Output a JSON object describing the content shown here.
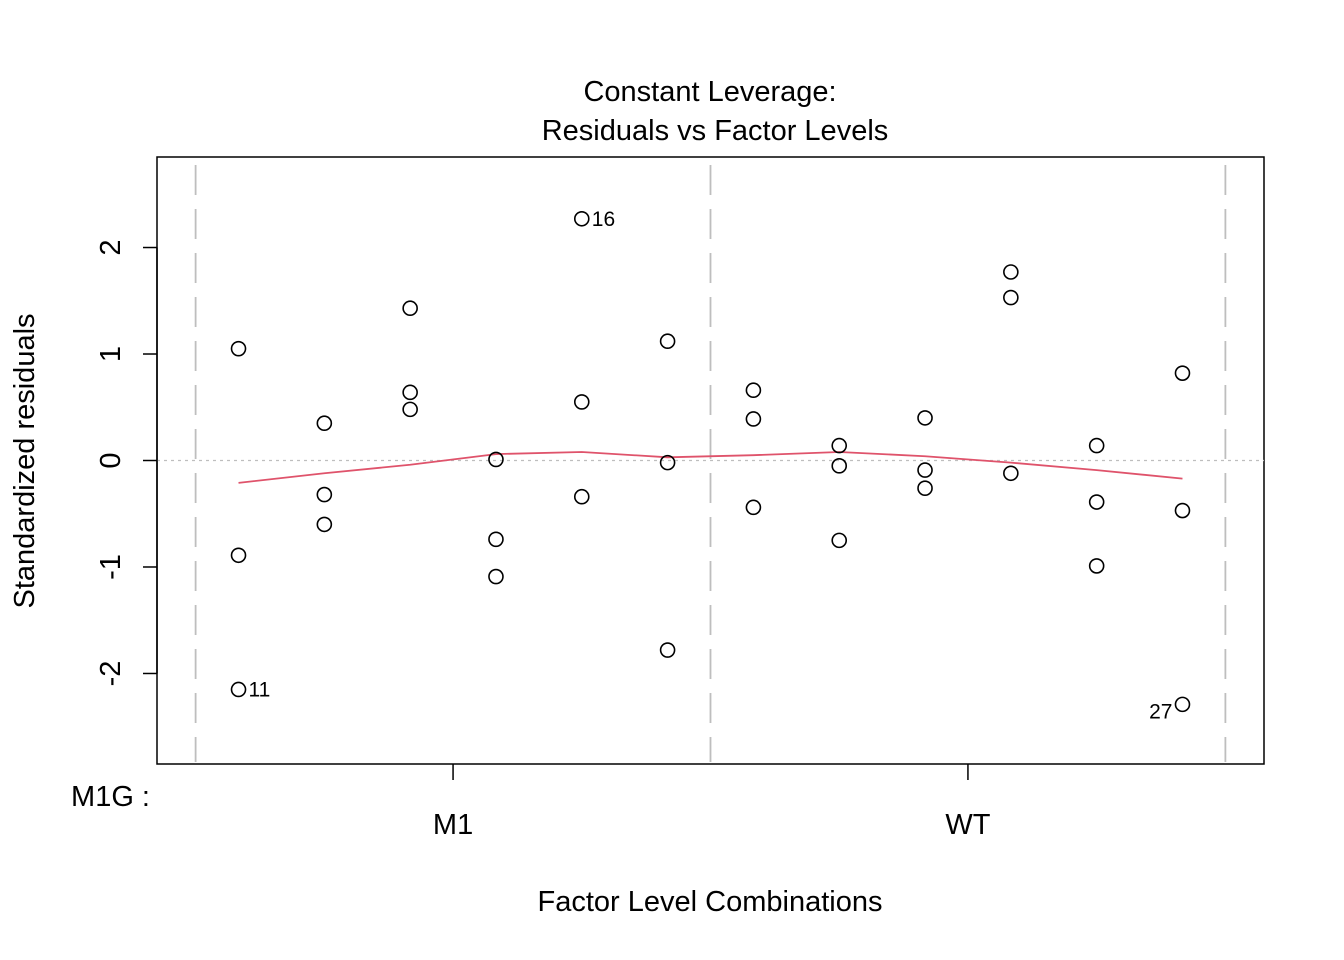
{
  "chart_data": {
    "type": "scatter",
    "title": "Constant Leverage:",
    "subtitle": "Residuals vs Factor Levels",
    "xlabel": "Factor Level Combinations",
    "ylabel": "Standardized residuals",
    "factor_label": "M1G :",
    "factor_levels": [
      "M1",
      "WT"
    ],
    "ylim": [
      -2.85,
      2.85
    ],
    "yticks": [
      -2,
      -1,
      0,
      1,
      2
    ],
    "ytick_labels": [
      "-2",
      "-1",
      "0",
      "1",
      "2"
    ],
    "group_boundaries": [
      0.5,
      6.5,
      12.5
    ],
    "level_centers": [
      3.5,
      9.5
    ],
    "reference_line": 0,
    "colors": {
      "points": "#000000",
      "smooth": "#DF536B",
      "dividers": "#BEBEBE",
      "reference": "#BEBEBE"
    },
    "points": [
      {
        "x": 1,
        "y": 1.05
      },
      {
        "x": 1,
        "y": -0.89
      },
      {
        "x": 1,
        "y": -2.15
      },
      {
        "x": 2,
        "y": 0.35
      },
      {
        "x": 2,
        "y": -0.32
      },
      {
        "x": 2,
        "y": -0.6
      },
      {
        "x": 3,
        "y": 1.43
      },
      {
        "x": 3,
        "y": 0.64
      },
      {
        "x": 3,
        "y": 0.48
      },
      {
        "x": 4,
        "y": 0.01
      },
      {
        "x": 4,
        "y": -0.74
      },
      {
        "x": 4,
        "y": -1.09
      },
      {
        "x": 5,
        "y": 2.27
      },
      {
        "x": 5,
        "y": 0.55
      },
      {
        "x": 5,
        "y": -0.34
      },
      {
        "x": 6,
        "y": 1.12
      },
      {
        "x": 6,
        "y": -0.02
      },
      {
        "x": 6,
        "y": -1.78
      },
      {
        "x": 7,
        "y": 0.66
      },
      {
        "x": 7,
        "y": 0.39
      },
      {
        "x": 7,
        "y": -0.44
      },
      {
        "x": 8,
        "y": 0.14
      },
      {
        "x": 8,
        "y": -0.05
      },
      {
        "x": 8,
        "y": -0.75
      },
      {
        "x": 9,
        "y": 0.4
      },
      {
        "x": 9,
        "y": -0.09
      },
      {
        "x": 9,
        "y": -0.26
      },
      {
        "x": 10,
        "y": 1.77
      },
      {
        "x": 10,
        "y": 1.53
      },
      {
        "x": 10,
        "y": -0.12
      },
      {
        "x": 11,
        "y": 0.14
      },
      {
        "x": 11,
        "y": -0.39
      },
      {
        "x": 11,
        "y": -0.99
      },
      {
        "x": 12,
        "y": 0.82
      },
      {
        "x": 12,
        "y": -0.47
      },
      {
        "x": 12,
        "y": -2.29
      }
    ],
    "labeled_points": [
      {
        "x": 5,
        "y": 2.27,
        "label": "16",
        "side": "right"
      },
      {
        "x": 1,
        "y": -2.15,
        "label": "11",
        "side": "right"
      },
      {
        "x": 12,
        "y": -2.29,
        "label": "27",
        "side": "left"
      }
    ],
    "smooth": {
      "x": [
        1,
        2,
        3,
        4,
        5,
        6,
        7,
        8,
        9,
        10,
        11,
        12
      ],
      "y": [
        -0.21,
        -0.12,
        -0.04,
        0.06,
        0.08,
        0.03,
        0.05,
        0.08,
        0.04,
        -0.02,
        -0.09,
        -0.17
      ]
    }
  }
}
